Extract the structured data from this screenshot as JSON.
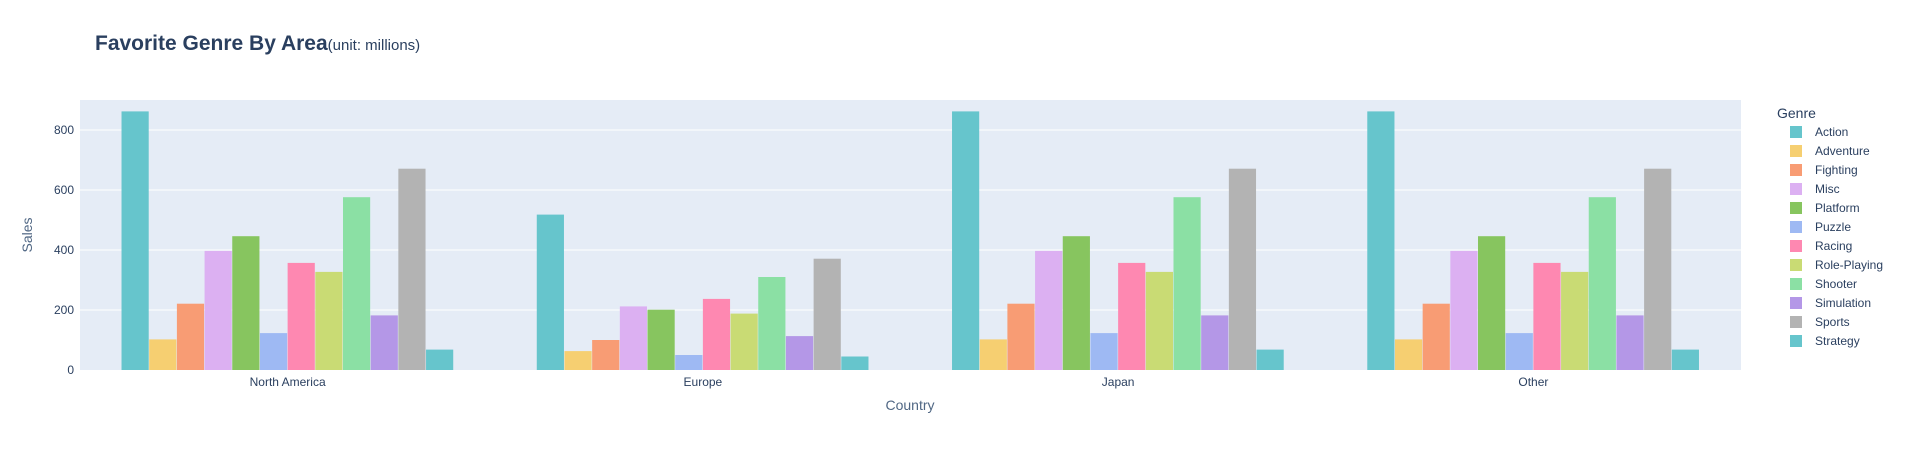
{
  "chart_data": {
    "type": "bar",
    "title": "Favorite Genre By Area",
    "subtitle": "(unit: millions)",
    "xlabel": "Country",
    "ylabel": "Sales",
    "ylim": [
      0,
      900
    ],
    "yticks": [
      0,
      200,
      400,
      600,
      800
    ],
    "grid": true,
    "legend_title": "Genre",
    "legend_position": "right",
    "categories": [
      "North America",
      "Europe",
      "Japan",
      "Other"
    ],
    "series": [
      {
        "name": "Action",
        "color": "#66C5CC",
        "values": [
          862,
          518,
          862,
          862
        ]
      },
      {
        "name": "Adventure",
        "color": "#F6CF71",
        "values": [
          102,
          63,
          102,
          102
        ]
      },
      {
        "name": "Fighting",
        "color": "#F89C74",
        "values": [
          221,
          100,
          221,
          221
        ]
      },
      {
        "name": "Misc",
        "color": "#DCB0F2",
        "values": [
          397,
          212,
          397,
          397
        ]
      },
      {
        "name": "Platform",
        "color": "#87C55F",
        "values": [
          446,
          201,
          446,
          446
        ]
      },
      {
        "name": "Puzzle",
        "color": "#9EB9F3",
        "values": [
          123,
          50,
          123,
          123
        ]
      },
      {
        "name": "Racing",
        "color": "#FE88B1",
        "values": [
          357,
          237,
          357,
          357
        ]
      },
      {
        "name": "Role-Playing",
        "color": "#C9DB74",
        "values": [
          327,
          188,
          327,
          327
        ]
      },
      {
        "name": "Shooter",
        "color": "#8BE0A4",
        "values": [
          576,
          310,
          576,
          576
        ]
      },
      {
        "name": "Simulation",
        "color": "#B497E7",
        "values": [
          182,
          113,
          182,
          182
        ]
      },
      {
        "name": "Sports",
        "color": "#B3B3B3",
        "values": [
          671,
          371,
          671,
          671
        ]
      },
      {
        "name": "Strategy",
        "color": "#66C5CC",
        "values": [
          68,
          45,
          68,
          68
        ]
      }
    ]
  }
}
